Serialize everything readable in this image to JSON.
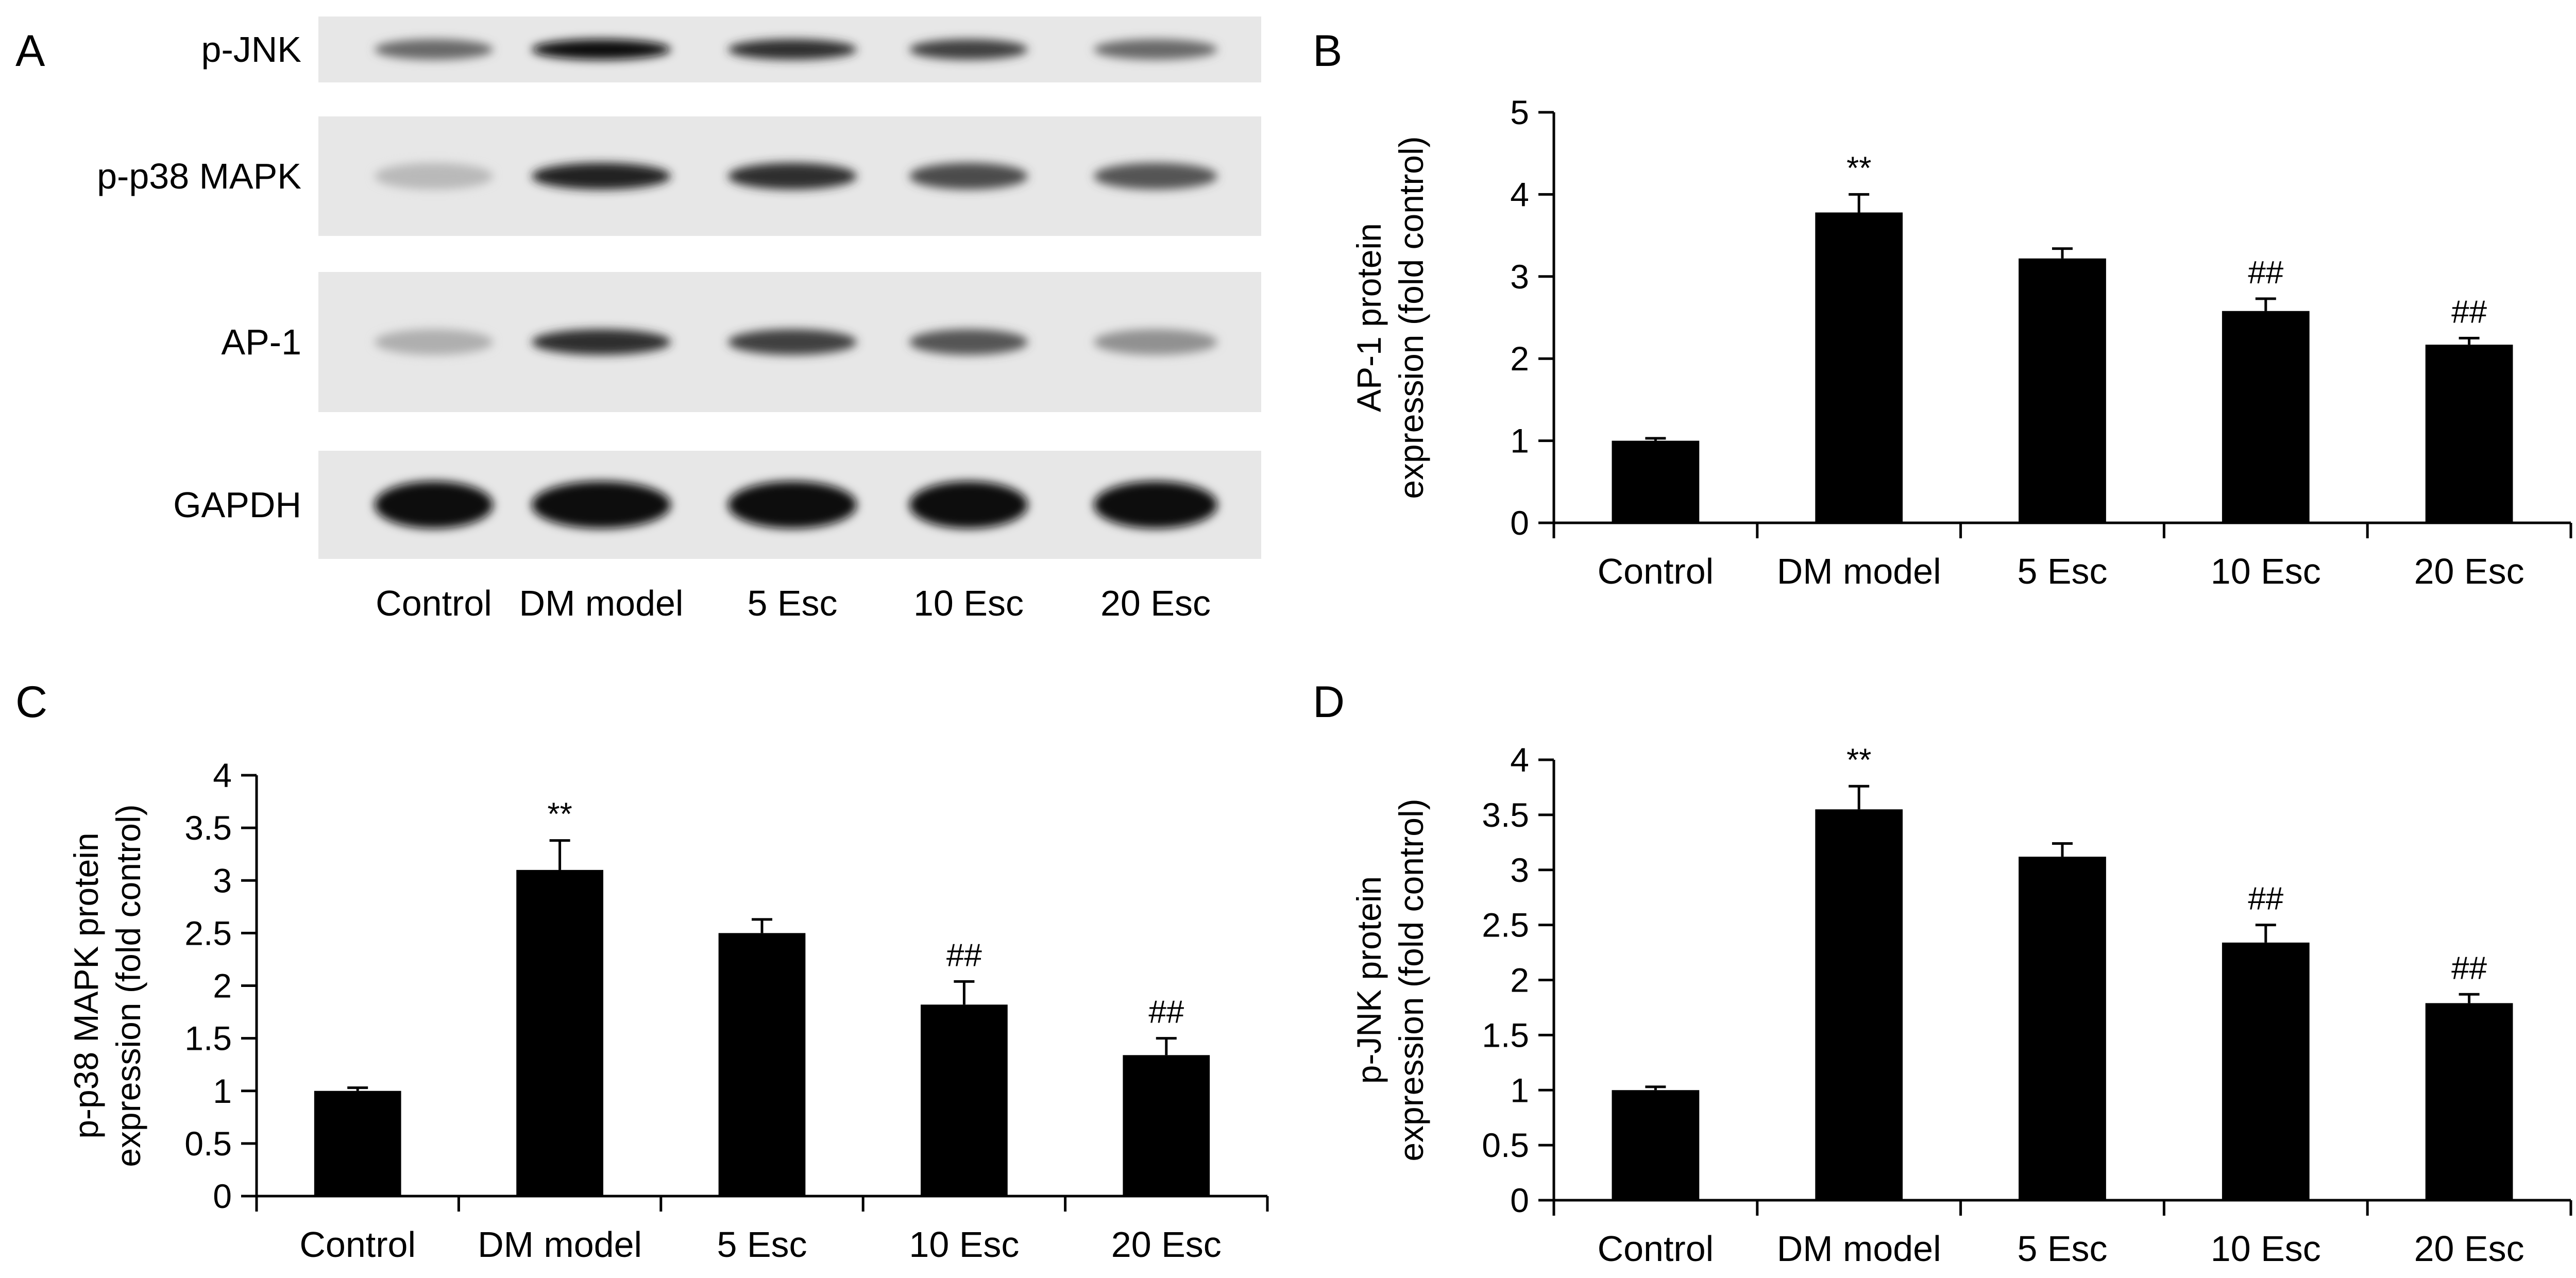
{
  "panel_a": {
    "letter": "A",
    "rows": [
      {
        "label": "p-JNK",
        "bands": [
          0.55,
          1.0,
          0.85,
          0.75,
          0.55
        ]
      },
      {
        "label": "p-p38 MAPK",
        "bands": [
          0.15,
          0.9,
          0.85,
          0.7,
          0.65
        ]
      },
      {
        "label": "AP-1",
        "bands": [
          0.2,
          0.85,
          0.75,
          0.65,
          0.35
        ]
      },
      {
        "label": "GAPDH",
        "bands": [
          1.0,
          1.0,
          1.0,
          1.0,
          1.0
        ]
      }
    ],
    "lanes": [
      "Control",
      "DM model",
      "5 Esc",
      "10 Esc",
      "20 Esc"
    ]
  },
  "chart_data": [
    {
      "panel": "B",
      "type": "bar",
      "categories": [
        "Control",
        "DM model",
        "5 Esc",
        "10 Esc",
        "20 Esc"
      ],
      "values": [
        1.0,
        3.78,
        3.22,
        2.58,
        2.17
      ],
      "errors": [
        0.03,
        0.22,
        0.12,
        0.15,
        0.08
      ],
      "annotations": [
        "",
        "**",
        "",
        "##",
        "##"
      ],
      "ylabel_lines": [
        "AP-1 protein",
        "expression (fold control)"
      ],
      "ylim": [
        0,
        5
      ],
      "yticks": [
        0,
        1,
        2,
        3,
        4,
        5
      ],
      "ytick_labels": [
        "0",
        "1",
        "2",
        "3",
        "4",
        "5"
      ],
      "color": "#000000"
    },
    {
      "panel": "C",
      "type": "bar",
      "categories": [
        "Control",
        "DM model",
        "5 Esc",
        "10 Esc",
        "20 Esc"
      ],
      "values": [
        1.0,
        3.1,
        2.5,
        1.82,
        1.34
      ],
      "errors": [
        0.03,
        0.28,
        0.13,
        0.22,
        0.16
      ],
      "annotations": [
        "",
        "**",
        "",
        "##",
        "##"
      ],
      "ylabel_lines": [
        "p-p38 MAPK protein",
        "expression (fold control)"
      ],
      "ylim": [
        0,
        4
      ],
      "yticks": [
        0,
        0.5,
        1,
        1.5,
        2,
        2.5,
        3,
        3.5,
        4
      ],
      "ytick_labels": [
        "0",
        "0.5",
        "1",
        "1.5",
        "2",
        "2.5",
        "3",
        "3.5",
        "4"
      ],
      "color": "#000000"
    },
    {
      "panel": "D",
      "type": "bar",
      "categories": [
        "Control",
        "DM model",
        "5 Esc",
        "10 Esc",
        "20 Esc"
      ],
      "values": [
        1.0,
        3.55,
        3.12,
        2.34,
        1.79
      ],
      "errors": [
        0.03,
        0.21,
        0.12,
        0.16,
        0.08
      ],
      "annotations": [
        "",
        "**",
        "",
        "##",
        "##"
      ],
      "ylabel_lines": [
        "p-JNK protein",
        "expression (fold control)"
      ],
      "ylim": [
        0,
        4
      ],
      "yticks": [
        0,
        0.5,
        1,
        1.5,
        2,
        2.5,
        3,
        3.5,
        4
      ],
      "ytick_labels": [
        "0",
        "0.5",
        "1",
        "1.5",
        "2",
        "2.5",
        "3",
        "3.5",
        "4"
      ],
      "color": "#000000"
    }
  ]
}
